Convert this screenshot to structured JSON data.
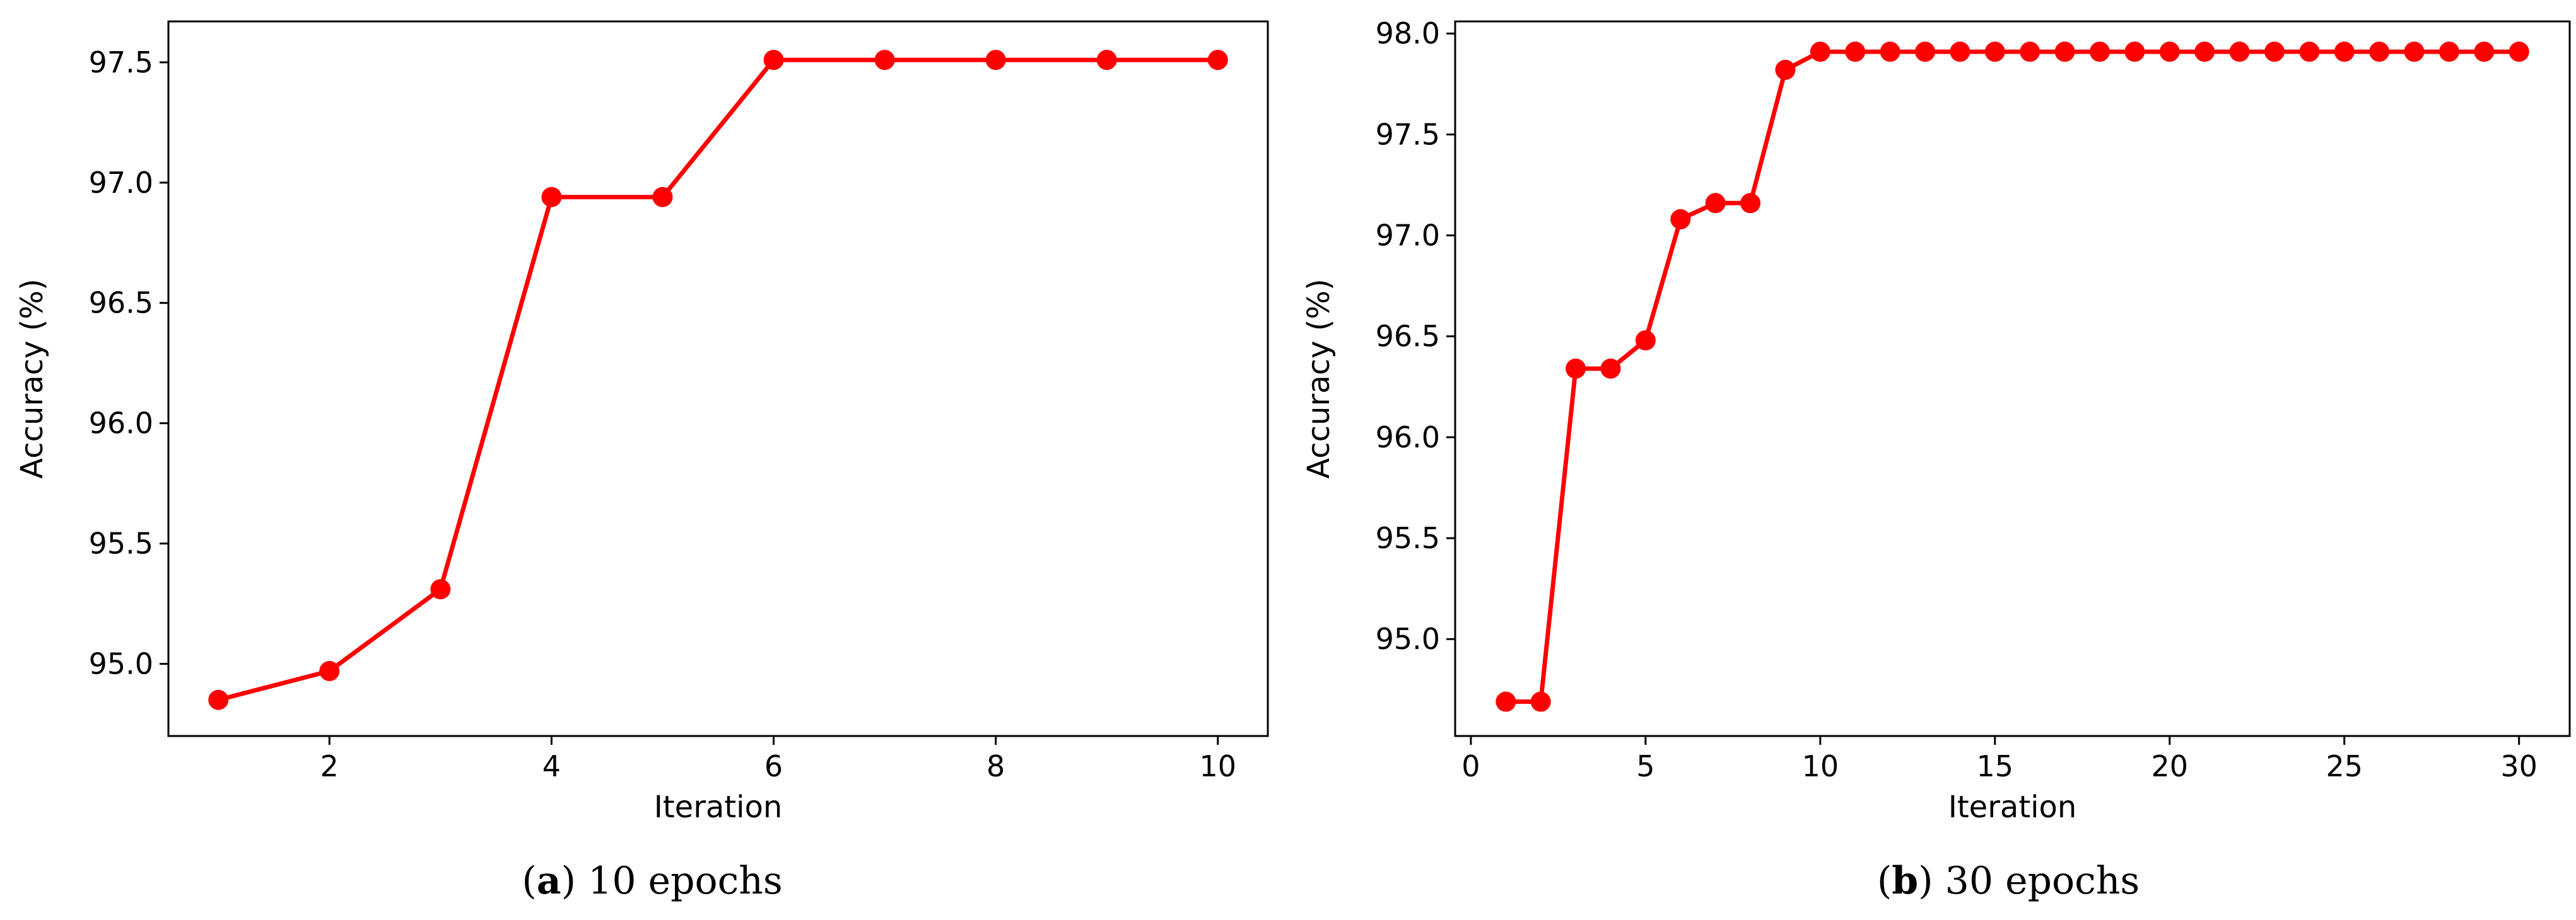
{
  "chart_data": [
    {
      "type": "line",
      "caption_letter": "a",
      "caption_text": "10 epochs",
      "xlabel": "Iteration",
      "ylabel": "Accuracy (%)",
      "xlim": [
        0.55,
        10.45
      ],
      "ylim": [
        94.7,
        97.67
      ],
      "xticks": [
        "2",
        "4",
        "6",
        "8",
        "10"
      ],
      "yticks": [
        "95.0",
        "95.5",
        "96.0",
        "96.5",
        "97.0",
        "97.5"
      ],
      "grid": false,
      "color": "#ff0000",
      "x": [
        1,
        2,
        3,
        4,
        5,
        6,
        7,
        8,
        9,
        10
      ],
      "y": [
        94.85,
        94.97,
        95.31,
        96.94,
        96.94,
        97.51,
        97.51,
        97.51,
        97.51,
        97.51
      ]
    },
    {
      "type": "line",
      "caption_letter": "b",
      "caption_text": "30 epochs",
      "xlabel": "Iteration",
      "ylabel": "Accuracy (%)",
      "xlim": [
        -0.45,
        31.45
      ],
      "ylim": [
        94.52,
        98.06
      ],
      "xticks": [
        "0",
        "5",
        "10",
        "15",
        "20",
        "25",
        "30"
      ],
      "yticks": [
        "95.0",
        "95.5",
        "96.0",
        "96.5",
        "97.0",
        "97.5",
        "98.0"
      ],
      "grid": false,
      "color": "#ff0000",
      "x": [
        1,
        2,
        3,
        4,
        5,
        6,
        7,
        8,
        9,
        10,
        11,
        12,
        13,
        14,
        15,
        16,
        17,
        18,
        19,
        20,
        21,
        22,
        23,
        24,
        25,
        26,
        27,
        28,
        29,
        30
      ],
      "y": [
        94.69,
        94.69,
        96.34,
        96.34,
        96.48,
        97.08,
        97.16,
        97.16,
        97.82,
        97.91,
        97.91,
        97.91,
        97.91,
        97.91,
        97.91,
        97.91,
        97.91,
        97.91,
        97.91,
        97.91,
        97.91,
        97.91,
        97.91,
        97.91,
        97.91,
        97.91,
        97.91,
        97.91,
        97.91,
        97.91
      ]
    }
  ]
}
